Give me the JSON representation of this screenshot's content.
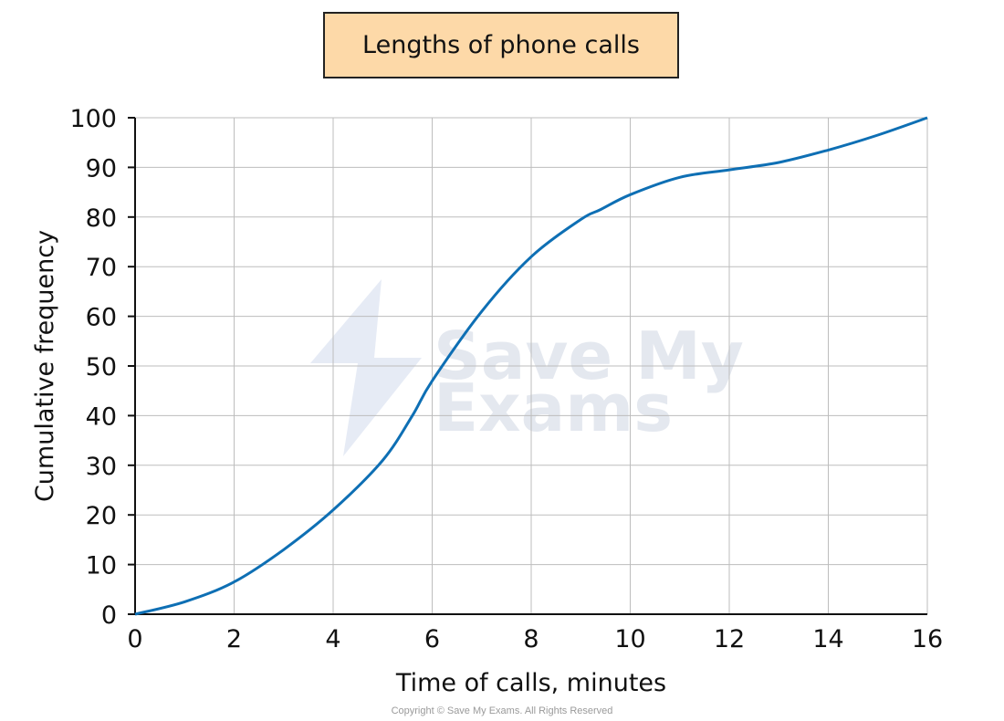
{
  "chart_data": {
    "type": "line",
    "title": "Lengths of phone calls",
    "xlabel": "Time of calls, minutes",
    "ylabel": "Cumulative frequency",
    "xlim": [
      0,
      16
    ],
    "ylim": [
      0,
      100
    ],
    "xticks": [
      "0",
      "2",
      "4",
      "6",
      "8",
      "10",
      "12",
      "14",
      "16"
    ],
    "yticks": [
      "0",
      "10",
      "20",
      "30",
      "40",
      "50",
      "60",
      "70",
      "80",
      "90",
      "100"
    ],
    "grid": true,
    "series": [
      {
        "color": "#0e6fb4",
        "x": [
          0,
          1,
          2,
          3,
          4,
          5,
          5.6,
          6,
          7,
          8,
          9,
          9.4,
          10,
          11,
          12,
          13,
          14,
          15,
          16
        ],
        "y": [
          0,
          2.5,
          6.5,
          13,
          21,
          31,
          40,
          47,
          61,
          72,
          79.5,
          81.5,
          84.5,
          88,
          89.5,
          91,
          93.5,
          96.5,
          100
        ]
      }
    ]
  },
  "watermark": {
    "line1": "Save My",
    "line2": "Exams"
  },
  "copyright": "Copyright © Save My Exams. All Rights Reserved"
}
